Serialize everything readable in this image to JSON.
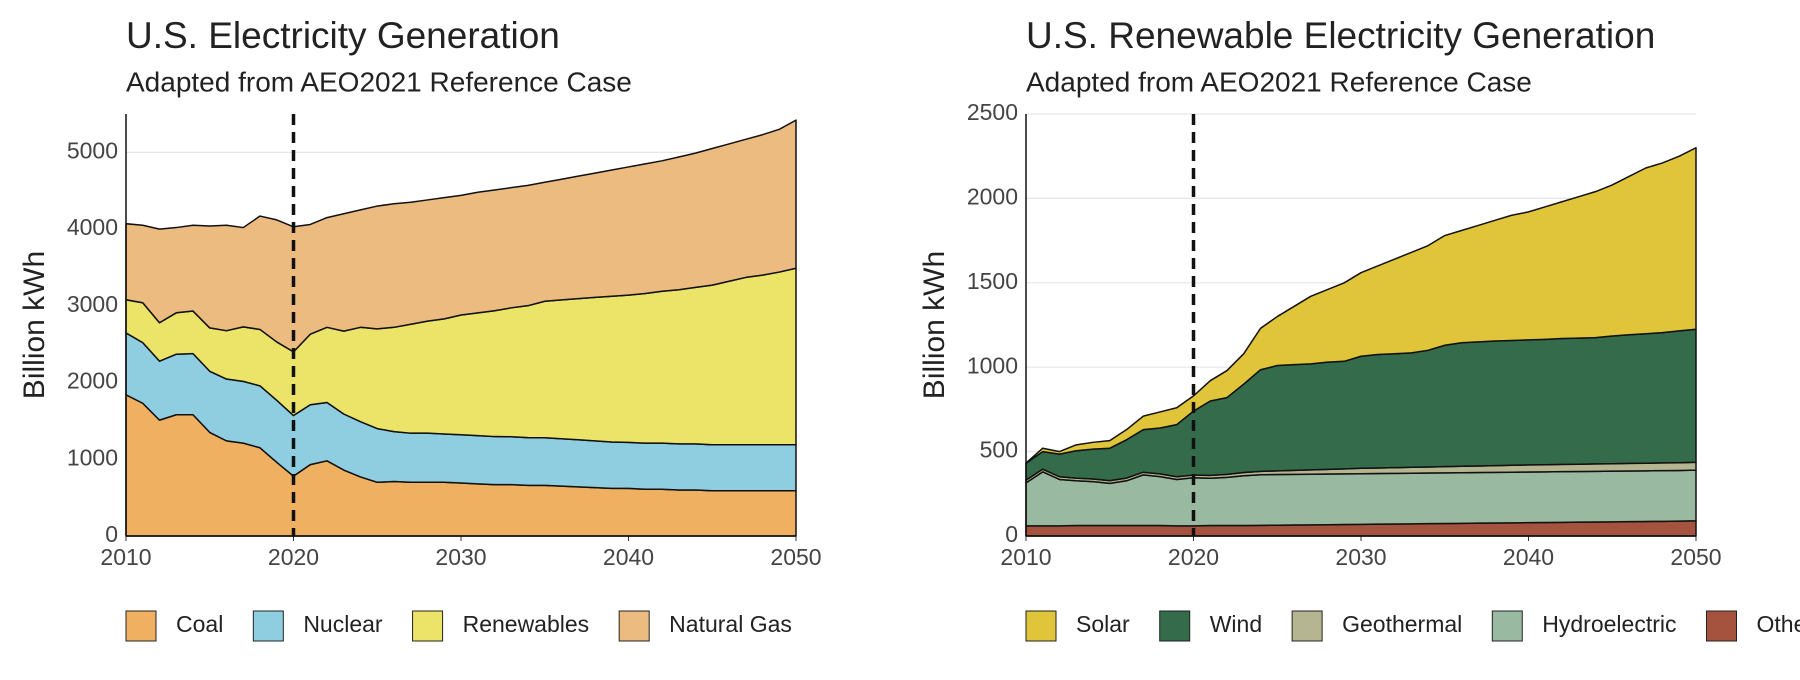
{
  "chart_data": [
    {
      "type": "stacked-area",
      "title": "U.S. Electricity Generation",
      "subtitle": "Adapted from AEO2021 Reference Case",
      "y_label": "Billion kWh",
      "x": [
        2010,
        2011,
        2012,
        2013,
        2014,
        2015,
        2016,
        2017,
        2018,
        2019,
        2020,
        2021,
        2022,
        2023,
        2024,
        2025,
        2026,
        2027,
        2028,
        2029,
        2030,
        2031,
        2032,
        2033,
        2034,
        2035,
        2036,
        2037,
        2038,
        2039,
        2040,
        2041,
        2042,
        2043,
        2044,
        2045,
        2046,
        2047,
        2048,
        2049,
        2050
      ],
      "xlim": [
        2010,
        2050
      ],
      "xticks": [
        2010,
        2020,
        2030,
        2040,
        2050
      ],
      "ylim": [
        0,
        5500
      ],
      "yticks": [
        0,
        1000,
        2000,
        3000,
        4000,
        5000
      ],
      "grid": true,
      "vline": 2020,
      "legend": "bottom",
      "legend_reversed": false,
      "series": [
        {
          "name": "Coal",
          "color": "#efb062",
          "values": [
            1840,
            1730,
            1510,
            1580,
            1580,
            1350,
            1240,
            1210,
            1150,
            960,
            780,
            930,
            980,
            860,
            770,
            700,
            710,
            700,
            700,
            700,
            690,
            680,
            670,
            670,
            660,
            660,
            650,
            640,
            630,
            620,
            620,
            610,
            610,
            600,
            600,
            590,
            590,
            590,
            590,
            590,
            590
          ]
        },
        {
          "name": "Nuclear",
          "color": "#8fcde0",
          "values": [
            807,
            790,
            769,
            789,
            797,
            797,
            806,
            805,
            807,
            809,
            790,
            780,
            760,
            730,
            720,
            700,
            650,
            640,
            640,
            630,
            630,
            628,
            626,
            624,
            622,
            620,
            617,
            614,
            610,
            605,
            600,
            600,
            600,
            600,
            600,
            600,
            600,
            600,
            600,
            600,
            600
          ]
        },
        {
          "name": "Renewables",
          "color": "#ebe468",
          "values": [
            432,
            520,
            500,
            540,
            555,
            565,
            630,
            710,
            735,
            760,
            830,
            920,
            980,
            1080,
            1230,
            1300,
            1360,
            1420,
            1460,
            1500,
            1560,
            1600,
            1640,
            1680,
            1720,
            1780,
            1810,
            1840,
            1870,
            1900,
            1920,
            1950,
            1980,
            2010,
            2040,
            2080,
            2130,
            2180,
            2210,
            2250,
            2300
          ]
        },
        {
          "name": "Natural Gas",
          "color": "#ebbb80",
          "values": [
            991,
            1010,
            1221,
            1111,
            1118,
            1328,
            1374,
            1295,
            1478,
            1591,
            1630,
            1430,
            1430,
            1530,
            1530,
            1600,
            1610,
            1590,
            1580,
            1580,
            1560,
            1572,
            1574,
            1566,
            1568,
            1550,
            1573,
            1596,
            1620,
            1645,
            1670,
            1690,
            1700,
            1730,
            1750,
            1780,
            1790,
            1800,
            1830,
            1860,
            1930
          ]
        }
      ]
    },
    {
      "type": "stacked-area",
      "title": "U.S. Renewable Electricity Generation",
      "subtitle": "Adapted from AEO2021 Reference Case",
      "y_label": "Billion kWh",
      "x": [
        2010,
        2011,
        2012,
        2013,
        2014,
        2015,
        2016,
        2017,
        2018,
        2019,
        2020,
        2021,
        2022,
        2023,
        2024,
        2025,
        2026,
        2027,
        2028,
        2029,
        2030,
        2031,
        2032,
        2033,
        2034,
        2035,
        2036,
        2037,
        2038,
        2039,
        2040,
        2041,
        2042,
        2043,
        2044,
        2045,
        2046,
        2047,
        2048,
        2049,
        2050
      ],
      "xlim": [
        2010,
        2050
      ],
      "xticks": [
        2010,
        2020,
        2030,
        2040,
        2050
      ],
      "ylim": [
        0,
        2500
      ],
      "yticks": [
        0,
        500,
        1000,
        1500,
        2000,
        2500
      ],
      "grid": true,
      "vline": 2020,
      "legend": "bottom",
      "legend_reversed": true,
      "series": [
        {
          "name": "Other",
          "color": "#a5523f",
          "values": [
            60,
            60,
            60,
            62,
            62,
            62,
            62,
            62,
            62,
            60,
            60,
            62,
            62,
            62,
            63,
            64,
            65,
            66,
            67,
            68,
            69,
            70,
            71,
            72,
            73,
            74,
            75,
            76,
            77,
            78,
            79,
            80,
            81,
            82,
            83,
            84,
            85,
            86,
            87,
            88,
            90
          ]
        },
        {
          "name": "Hydroelectric",
          "color": "#9ab9a1",
          "values": [
            255,
            320,
            275,
            265,
            260,
            250,
            265,
            300,
            290,
            275,
            285,
            280,
            285,
            295,
            300,
            300,
            300,
            300,
            300,
            300,
            300,
            300,
            300,
            300,
            300,
            300,
            300,
            300,
            300,
            300,
            300,
            300,
            300,
            300,
            300,
            300,
            300,
            300,
            300,
            300,
            300
          ]
        },
        {
          "name": "Geothermal",
          "color": "#b5b592",
          "values": [
            16,
            16,
            16,
            16,
            16,
            16,
            16,
            16,
            16,
            16,
            16,
            17,
            18,
            19,
            20,
            22,
            24,
            26,
            28,
            30,
            32,
            33,
            34,
            35,
            36,
            37,
            38,
            39,
            40,
            41,
            42,
            42,
            43,
            43,
            44,
            44,
            45,
            45,
            46,
            46,
            47
          ]
        },
        {
          "name": "Wind",
          "color": "#336b4b",
          "values": [
            100,
            104,
            134,
            162,
            177,
            192,
            227,
            252,
            272,
            309,
            379,
            441,
            455,
            524,
            602,
            624,
            626,
            628,
            635,
            637,
            664,
            672,
            675,
            678,
            691,
            719,
            732,
            735,
            738,
            739,
            741,
            743,
            746,
            747,
            748,
            757,
            762,
            767,
            772,
            781,
            788
          ]
        },
        {
          "name": "Solar",
          "color": "#e0c43a",
          "values": [
            1,
            20,
            15,
            35,
            40,
            45,
            60,
            80,
            95,
            100,
            90,
            120,
            160,
            180,
            245,
            290,
            345,
            400,
            430,
            465,
            495,
            525,
            560,
            595,
            620,
            650,
            665,
            690,
            715,
            742,
            758,
            785,
            810,
            838,
            865,
            895,
            938,
            982,
            1005,
            1035,
            1075
          ]
        }
      ]
    }
  ]
}
